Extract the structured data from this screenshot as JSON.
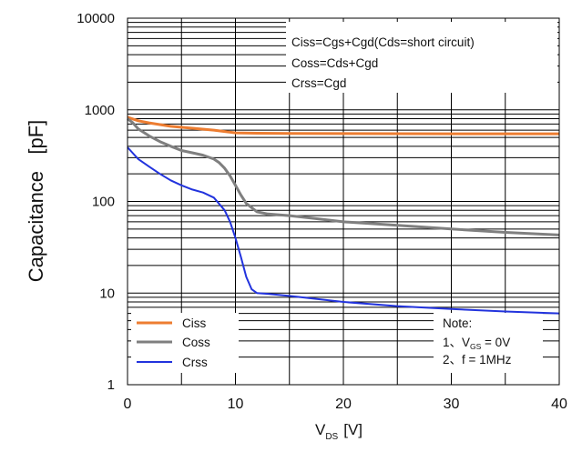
{
  "chart_data": {
    "type": "line",
    "xlabel_main": "V",
    "xlabel_sub": "DS",
    "xlabel_unit": "[V]",
    "ylabel": "Capacitance   [pF]",
    "xlim": [
      0,
      40
    ],
    "ylim": [
      1,
      10000
    ],
    "yscale": "log",
    "grid": true,
    "x_ticks": [
      "0",
      "10",
      "20",
      "30",
      "40"
    ],
    "y_ticks": [
      "1",
      "10",
      "100",
      "1000",
      "10000"
    ],
    "annotations": [
      "Ciss=Cgs+Cgd(Cds=short circuit)",
      "Coss=Cds+Cgd",
      "Crss=Cgd"
    ],
    "note": {
      "title": "Note:",
      "line1_prefix": "1、V",
      "line1_sub": "GS",
      "line1_suffix": " = 0V",
      "line2": "2、f = 1MHz"
    },
    "legend_position": "bottom-left",
    "series": [
      {
        "name": "Ciss",
        "color": "#ed7d31",
        "x": [
          0,
          1,
          2,
          4,
          6,
          8,
          9,
          10,
          12,
          15,
          20,
          25,
          30,
          35,
          40
        ],
        "values": [
          830,
          760,
          720,
          660,
          630,
          600,
          580,
          560,
          555,
          552,
          550,
          549,
          548,
          547,
          547
        ]
      },
      {
        "name": "Coss",
        "color": "#7f7f7f",
        "x": [
          0,
          0.5,
          1,
          2,
          3,
          4,
          5,
          6,
          7,
          8,
          8.5,
          9,
          9.5,
          10,
          10.5,
          11,
          12,
          13,
          15,
          17,
          20,
          25,
          30,
          35,
          40
        ],
        "values": [
          800,
          720,
          620,
          520,
          450,
          400,
          360,
          340,
          320,
          290,
          265,
          230,
          190,
          150,
          118,
          95,
          77,
          73,
          70,
          66,
          60,
          55,
          50,
          46,
          43
        ]
      },
      {
        "name": "Crss",
        "color": "#2233dd",
        "x": [
          0,
          1,
          2,
          3,
          4,
          5,
          6,
          7,
          8,
          9,
          9.5,
          10,
          10.5,
          11,
          11.5,
          12,
          13,
          15,
          20,
          25,
          30,
          35,
          40
        ],
        "values": [
          390,
          290,
          240,
          200,
          170,
          150,
          135,
          125,
          110,
          80,
          60,
          40,
          25,
          15,
          11,
          10,
          9.8,
          9.3,
          8.0,
          7.2,
          6.7,
          6.3,
          6.0
        ]
      }
    ]
  }
}
